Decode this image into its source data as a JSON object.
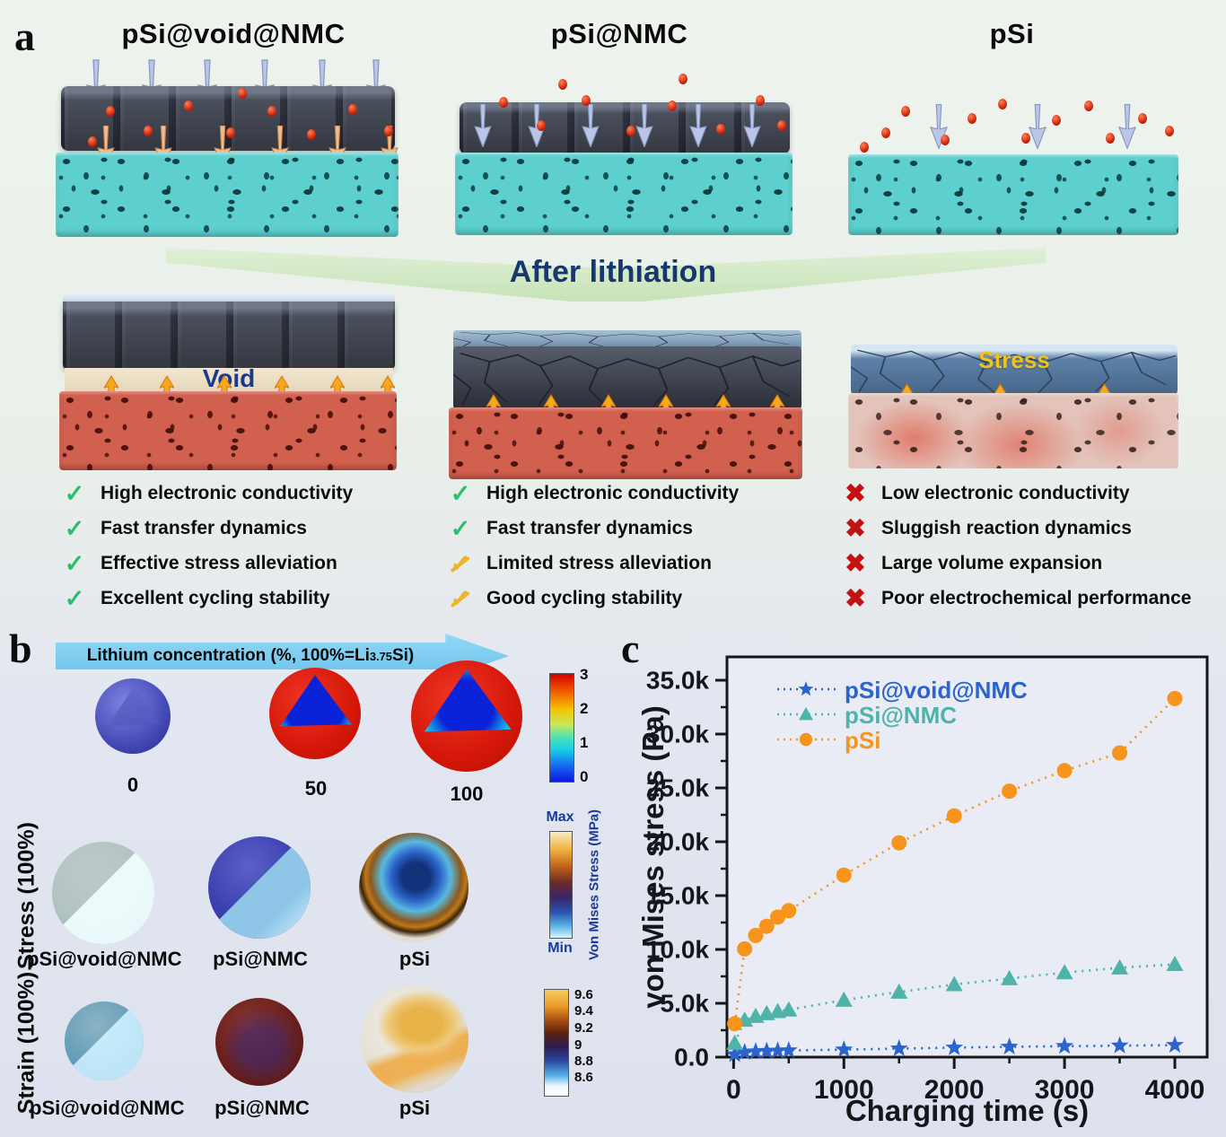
{
  "panel_a": {
    "label": "a",
    "banner_text": "After lithiation",
    "void_label": "Void",
    "stress_label": "Stress",
    "columns": [
      {
        "title": "pSi@void@NMC",
        "items": [
          {
            "icon": "check-green",
            "text": "High electronic conductivity"
          },
          {
            "icon": "check-green",
            "text": "Fast transfer dynamics"
          },
          {
            "icon": "check-green",
            "text": "Effective stress alleviation"
          },
          {
            "icon": "check-green",
            "text": "Excellent cycling stability"
          }
        ]
      },
      {
        "title": "pSi@NMC",
        "items": [
          {
            "icon": "check-green",
            "text": "High electronic conductivity"
          },
          {
            "icon": "check-green",
            "text": "Fast  transfer dynamics"
          },
          {
            "icon": "check-yellow",
            "text": "Limited stress alleviation"
          },
          {
            "icon": "check-yellow",
            "text": "Good cycling stability"
          }
        ]
      },
      {
        "title": "pSi",
        "items": [
          {
            "icon": "cross-red",
            "text": "Low electronic conductivity"
          },
          {
            "icon": "cross-red",
            "text": "Sluggish reaction dynamics"
          },
          {
            "icon": "cross-red",
            "text": "Large volume expansion"
          },
          {
            "icon": "cross-red",
            "text": "Poor electrochemical performance"
          }
        ]
      }
    ]
  },
  "panel_b": {
    "label": "b",
    "arrow_label": {
      "pre": "Lithium concentration (%, 100%=Li",
      "sub": "3.75",
      "post": "Si)"
    },
    "concentration_labels": [
      "0",
      "50",
      "100"
    ],
    "stress_row_label": "Stress (100%)",
    "strain_row_label": "Strain (100%)",
    "stress_sphere_labels": [
      "pSi@void@NMC",
      "pSi@NMC",
      "pSi"
    ],
    "strain_sphere_labels": [
      "pSi@void@NMC",
      "pSi@NMC",
      "pSi"
    ],
    "colorbar_concentration": {
      "ticks": [
        "3",
        "2",
        "1",
        "0"
      ]
    },
    "colorbar_stress": {
      "top": "Max",
      "bottom": "Min",
      "label": "Von Mises Stress (MPa)"
    },
    "colorbar_strain": {
      "ticks": [
        "9.6",
        "9.4",
        "9.2",
        "9",
        "8.8",
        "8.6"
      ]
    }
  },
  "panel_c": {
    "label": "c"
  },
  "chart_data": {
    "type": "line",
    "title": "",
    "xlabel": "Charging time (s)",
    "ylabel": "von Mises stress (Pa)",
    "xlim": [
      -60,
      4293
    ],
    "ylim": [
      0,
      37166
    ],
    "grid": false,
    "legend_position": "top-left",
    "x_ticks": [
      {
        "v": 0,
        "label": "0"
      },
      {
        "v": 1000,
        "label": "1000"
      },
      {
        "v": 2000,
        "label": "2000"
      },
      {
        "v": 3000,
        "label": "3000"
      },
      {
        "v": 4000,
        "label": "4000"
      }
    ],
    "y_ticks": [
      {
        "v": 0,
        "label": "0.0"
      },
      {
        "v": 5000,
        "label": "5.0k"
      },
      {
        "v": 10000,
        "label": "10.0k"
      },
      {
        "v": 15000,
        "label": "15.0k"
      },
      {
        "v": 20000,
        "label": "20.0k"
      },
      {
        "v": 25000,
        "label": "25.0k"
      },
      {
        "v": 30000,
        "label": "30.0k"
      },
      {
        "v": 35000,
        "label": "35.0k"
      }
    ],
    "x_minor_step": 500,
    "y_minor_step": 2500,
    "x": [
      10,
      100,
      200,
      300,
      400,
      500,
      1000,
      1500,
      2000,
      2500,
      3000,
      3500,
      4000
    ],
    "series": [
      {
        "name": "pSi@void@NMC",
        "color": "#2a64cc",
        "marker": "star",
        "y": [
          250,
          450,
          520,
          560,
          590,
          620,
          700,
          790,
          880,
          960,
          1020,
          1070,
          1120
        ]
      },
      {
        "name": "pSi@NMC",
        "color": "#4eb3a8",
        "marker": "triangle",
        "y": [
          1300,
          3450,
          3800,
          4050,
          4250,
          4400,
          5300,
          6050,
          6750,
          7300,
          7850,
          8300,
          8620
        ]
      },
      {
        "name": "pSi",
        "color": "#f7941d",
        "marker": "circle",
        "y": [
          3100,
          10050,
          11300,
          12150,
          13000,
          13600,
          16900,
          19900,
          22400,
          24700,
          26600,
          28250,
          33300
        ]
      }
    ]
  }
}
